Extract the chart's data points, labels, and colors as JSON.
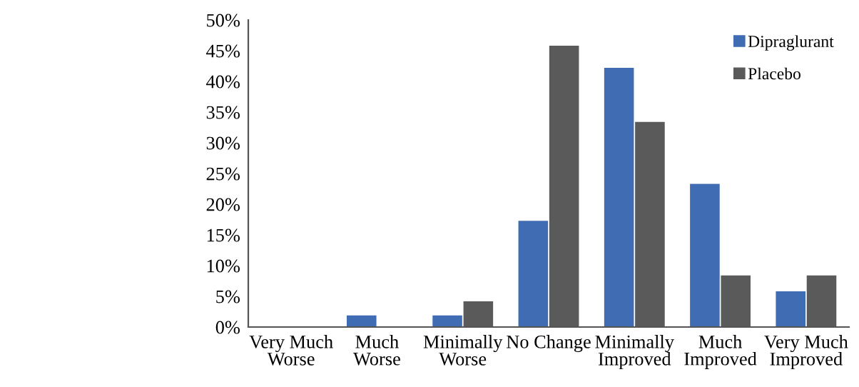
{
  "chart_data": {
    "type": "bar",
    "categories": [
      "Very Much\nWorse",
      "Much\nWorse",
      "Minimally\nWorse",
      "No Change",
      "Minimally\nImproved",
      "Much\nImproved",
      "Very Much\nImproved"
    ],
    "series": [
      {
        "name": "Dipraglurant",
        "color": "#3f6cb3",
        "values": [
          0,
          1.9,
          1.9,
          17.3,
          42.2,
          23.3,
          5.8
        ]
      },
      {
        "name": "Placebo",
        "color": "#5a5a5a",
        "values": [
          0,
          0,
          4.2,
          45.8,
          33.4,
          8.4,
          8.4
        ]
      }
    ],
    "ylim": [
      0,
      50
    ],
    "yticks": [
      {
        "value": 0,
        "label": "0%"
      },
      {
        "value": 5,
        "label": "5%"
      },
      {
        "value": 10,
        "label": "10%"
      },
      {
        "value": 15,
        "label": "15%"
      },
      {
        "value": 20,
        "label": "20%"
      },
      {
        "value": 25,
        "label": "25%"
      },
      {
        "value": 30,
        "label": "30%"
      },
      {
        "value": 35,
        "label": "35%"
      },
      {
        "value": 40,
        "label": "40%"
      },
      {
        "value": 45,
        "label": "45%"
      },
      {
        "value": 50,
        "label": "50%"
      }
    ],
    "grid": false,
    "legend": "top right"
  }
}
